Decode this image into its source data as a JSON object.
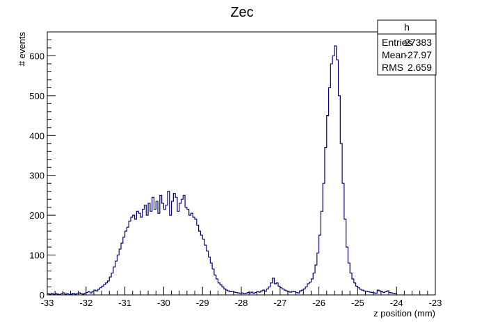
{
  "chart_data": {
    "type": "bar",
    "title": "Zec",
    "xlabel": "z position (mm)",
    "ylabel": "# events",
    "xlim": [
      -33,
      -23
    ],
    "ylim": [
      0,
      660
    ],
    "x_ticks": [
      -33,
      -32,
      -31,
      -30,
      -29,
      -28,
      -27,
      -26,
      -25,
      -24,
      -23
    ],
    "y_ticks": [
      0,
      100,
      200,
      300,
      400,
      500,
      600
    ],
    "grid": false,
    "line_color": "#000080",
    "bin_width": 0.05,
    "bins_start": -33,
    "values": [
      3,
      2,
      4,
      1,
      3,
      2,
      1,
      3,
      5,
      2,
      3,
      1,
      2,
      4,
      2,
      3,
      5,
      3,
      2,
      4,
      6,
      8,
      5,
      9,
      12,
      10,
      14,
      18,
      22,
      26,
      30,
      35,
      45,
      55,
      70,
      85,
      100,
      115,
      130,
      145,
      160,
      170,
      185,
      195,
      200,
      190,
      210,
      205,
      195,
      215,
      225,
      200,
      230,
      210,
      245,
      215,
      235,
      205,
      250,
      230,
      215,
      225,
      260,
      200,
      235,
      255,
      245,
      210,
      230,
      240,
      250,
      220,
      215,
      200,
      205,
      195,
      190,
      175,
      160,
      150,
      140,
      125,
      110,
      95,
      80,
      65,
      50,
      40,
      30,
      25,
      20,
      15,
      12,
      10,
      8,
      9,
      7,
      6,
      5,
      4,
      5,
      3,
      4,
      6,
      5,
      7,
      4,
      6,
      8,
      7,
      10,
      12,
      9,
      15,
      20,
      30,
      42,
      28,
      30,
      22,
      18,
      15,
      12,
      10,
      8,
      7,
      9,
      8,
      6,
      5,
      10,
      12,
      15,
      20,
      28,
      32,
      40,
      55,
      75,
      105,
      150,
      210,
      280,
      370,
      450,
      520,
      580,
      600,
      625,
      590,
      500,
      380,
      280,
      190,
      120,
      80,
      55,
      40,
      30,
      22,
      18,
      14,
      12,
      10,
      9,
      8,
      7,
      6,
      5,
      4,
      12,
      10,
      8,
      6,
      8,
      10,
      6,
      5,
      4,
      3
    ]
  },
  "stats_box": {
    "name": "h",
    "rows": [
      {
        "label": "Entries",
        "value": "27383"
      },
      {
        "label": "Mean",
        "value": "-27.97"
      },
      {
        "label": "RMS",
        "value": "2.659"
      }
    ]
  }
}
